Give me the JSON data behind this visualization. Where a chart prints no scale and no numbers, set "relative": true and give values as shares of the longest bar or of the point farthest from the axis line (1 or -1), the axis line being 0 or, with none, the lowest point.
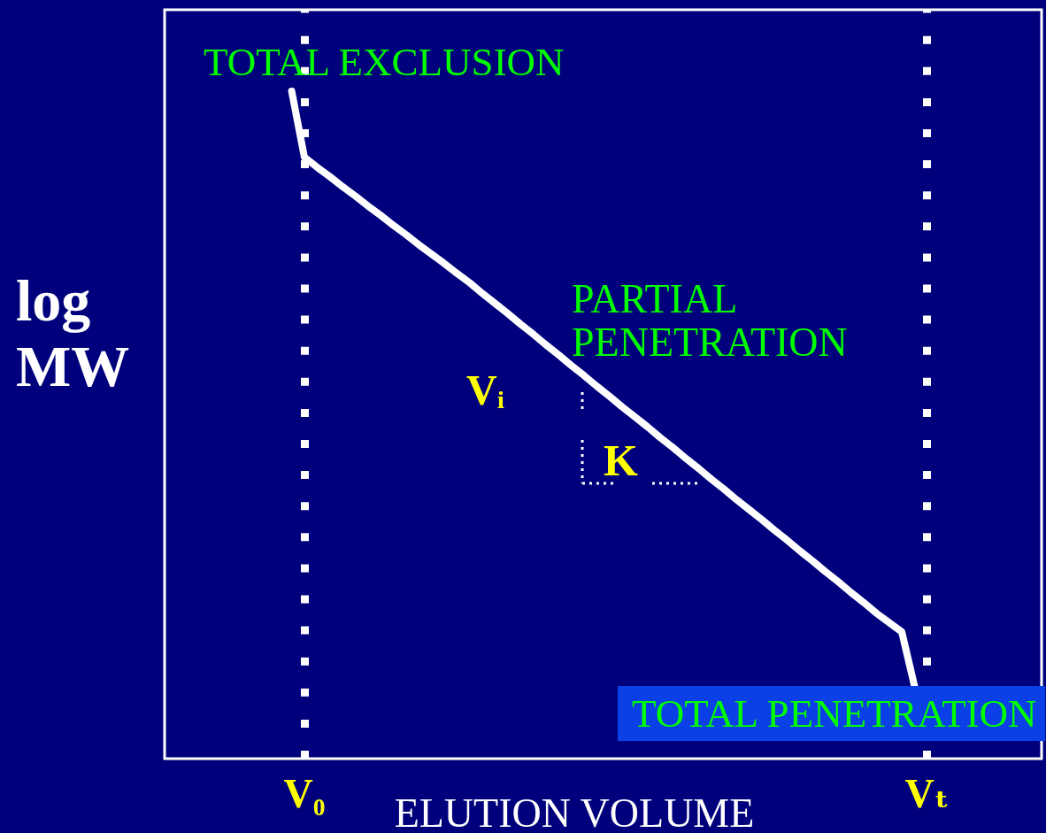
{
  "chart_data": {
    "type": "line",
    "relative": true,
    "xlabel": "ELUTION VOLUME",
    "ylabel": "log MW",
    "categories": [
      null,
      null,
      null,
      null,
      null,
      null,
      null,
      null,
      null,
      null,
      null,
      "V₀",
      null,
      null,
      null,
      null,
      null,
      null,
      null,
      null,
      null,
      null,
      null,
      null,
      null,
      null,
      null,
      null,
      null,
      null,
      null,
      null,
      null,
      null,
      null,
      null,
      null,
      null,
      null,
      null,
      null,
      null,
      null,
      null,
      null,
      null,
      null,
      null,
      null,
      null,
      null,
      null,
      null,
      null,
      null,
      null,
      null,
      null,
      null,
      null,
      "Vₜ",
      null,
      null,
      null,
      null,
      null,
      null,
      null,
      null,
      null
    ],
    "series": [
      {
        "color": "#ffffff",
        "values": [
          null,
          null,
          null,
          null,
          null,
          null,
          null,
          null,
          null,
          null,
          1,
          0.901,
          0.886,
          0.872,
          0.857,
          0.843,
          0.828,
          0.814,
          0.799,
          0.785,
          0.77,
          0.756,
          0.742,
          0.727,
          0.713,
          0.697,
          0.682,
          0.667,
          0.651,
          0.636,
          0.62,
          0.605,
          0.589,
          0.574,
          0.558,
          0.543,
          0.527,
          0.512,
          0.497,
          0.481,
          0.466,
          0.45,
          0.435,
          0.419,
          0.404,
          0.388,
          0.373,
          0.358,
          0.342,
          0.327,
          0.311,
          0.296,
          0.28,
          0.265,
          0.249,
          0.234,
          0.218,
          0.204,
          0.19,
          0.109,
          null,
          null,
          null,
          null,
          null,
          null,
          null,
          null,
          null,
          null
        ]
      }
    ],
    "ref_lines": [
      {
        "axis": "x",
        "value": "V₀",
        "color": "#ffffff",
        "line_style": "dotted"
      },
      {
        "axis": "x",
        "value": "Vₜ",
        "color": "#ffffff",
        "line_style": "dotted"
      }
    ],
    "annotations": [
      "TOTAL EXCLUSION",
      "PARTIAL PENETRATION",
      "Vᵢ",
      "K",
      "TOTAL PENETRATION"
    ],
    "marker": "none",
    "grid": false
  }
}
